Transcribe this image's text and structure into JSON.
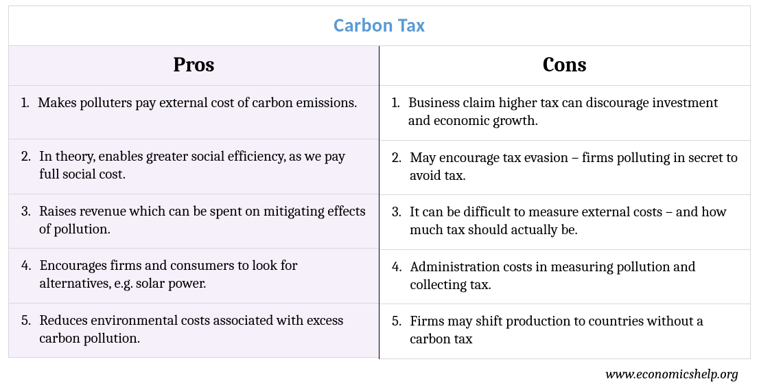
{
  "title": "Carbon Tax",
  "title_color": "#5a9ad4",
  "border_color": "#d8d8d8",
  "divider_color": "#000000",
  "pros_bg": "#f6f0fb",
  "cons_bg": "#ffffff",
  "text_color": "#000000",
  "title_fontsize": 28,
  "header_fontsize": 30,
  "body_fontsize": 21,
  "footer_fontsize": 20,
  "columns": {
    "pros": {
      "header": "Pros",
      "items": [
        "Makes polluters pay external cost of carbon emissions.",
        "In theory, enables greater social efficiency, as we pay full social cost.",
        "Raises revenue which can be spent on mitigating effects of pollution.",
        "Encourages firms and consumers to look for alternatives, e.g. solar power.",
        "Reduces environmental costs associated with excess carbon pollution."
      ]
    },
    "cons": {
      "header": "Cons",
      "items": [
        "Business claim higher tax can discourage investment and economic growth.",
        "May encourage tax evasion – firms polluting in secret to avoid tax.",
        "It can be difficult to measure external costs – and how much tax should actually be.",
        "Administration costs in measuring pollution and collecting tax.",
        "Firms may shift production to countries without a carbon tax"
      ]
    }
  },
  "footer": "www.economicshelp.org"
}
